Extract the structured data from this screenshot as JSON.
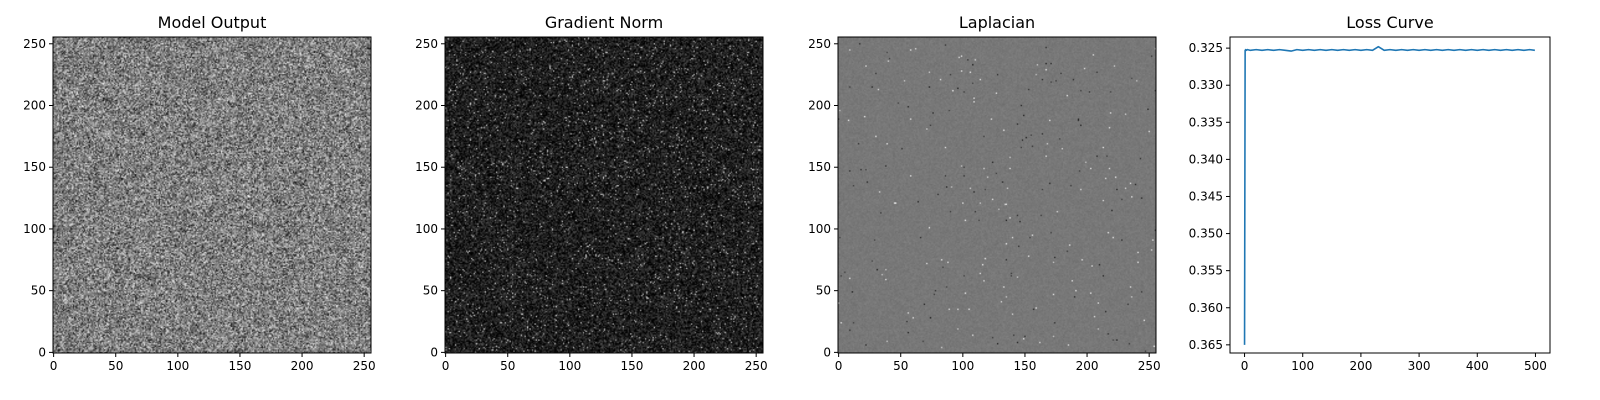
{
  "figure": {
    "background": "#ffffff",
    "text_color": "#000000"
  },
  "chart_data": [
    {
      "type": "heatmap",
      "title": "Model Output",
      "colormap": "gray",
      "grid": false,
      "image_shape": [
        256,
        256
      ],
      "xlim": [
        -0.5,
        255.5
      ],
      "ylim": [
        255.5,
        -0.5
      ],
      "x_ticks": [
        0,
        50,
        100,
        150,
        200,
        250
      ],
      "y_ticks": [
        0,
        50,
        100,
        150,
        200,
        250
      ],
      "noise": {
        "mean": 0.5,
        "spread": 0.22,
        "speck_rate": 0.0
      }
    },
    {
      "type": "heatmap",
      "title": "Gradient Norm",
      "colormap": "gray",
      "grid": false,
      "image_shape": [
        256,
        256
      ],
      "xlim": [
        -0.5,
        255.5
      ],
      "ylim": [
        255.5,
        -0.5
      ],
      "x_ticks": [
        0,
        50,
        100,
        150,
        200,
        250
      ],
      "y_ticks": [
        0,
        50,
        100,
        150,
        200,
        250
      ],
      "noise": {
        "mean": 0.12,
        "spread": 0.12,
        "speck_rate": 0.06
      }
    },
    {
      "type": "heatmap",
      "title": "Laplacian",
      "colormap": "gray",
      "grid": false,
      "image_shape": [
        256,
        256
      ],
      "xlim": [
        -0.5,
        255.5
      ],
      "ylim": [
        255.5,
        -0.5
      ],
      "x_ticks": [
        0,
        50,
        100,
        150,
        200,
        250
      ],
      "y_ticks": [
        0,
        50,
        100,
        150,
        200,
        250
      ],
      "noise": {
        "mean": 0.47,
        "spread": 0.02,
        "speck_rate": 0.004
      }
    },
    {
      "type": "line",
      "title": "Loss Curve",
      "grid": false,
      "xlim": [
        -25,
        525
      ],
      "ylim": [
        0.3235,
        0.3661
      ],
      "x_ticks": [
        0,
        100,
        200,
        300,
        400,
        500
      ],
      "y_ticks": [
        0.325,
        0.33,
        0.335,
        0.34,
        0.345,
        0.35,
        0.355,
        0.36,
        0.365
      ],
      "series": [
        {
          "color": "#1f77b4",
          "x": [
            0,
            1,
            2,
            3,
            5,
            10,
            20,
            30,
            40,
            50,
            60,
            70,
            80,
            90,
            100,
            110,
            120,
            130,
            140,
            150,
            160,
            170,
            180,
            190,
            200,
            210,
            220,
            230,
            240,
            250,
            260,
            270,
            280,
            290,
            300,
            310,
            320,
            330,
            340,
            350,
            360,
            370,
            380,
            390,
            400,
            410,
            420,
            430,
            440,
            450,
            460,
            470,
            480,
            490,
            499
          ],
          "y": [
            0.365,
            0.3253,
            0.3252,
            0.3253,
            0.3252,
            0.3253,
            0.3252,
            0.3253,
            0.3252,
            0.3253,
            0.3252,
            0.3253,
            0.3254,
            0.3252,
            0.3253,
            0.3252,
            0.3253,
            0.3252,
            0.3253,
            0.3252,
            0.3253,
            0.3252,
            0.3253,
            0.3252,
            0.3253,
            0.3252,
            0.3253,
            0.3248,
            0.3253,
            0.3252,
            0.3253,
            0.3252,
            0.3253,
            0.3252,
            0.3253,
            0.3252,
            0.3253,
            0.3252,
            0.3253,
            0.3252,
            0.3253,
            0.3252,
            0.3253,
            0.3252,
            0.3253,
            0.3252,
            0.3253,
            0.3252,
            0.3253,
            0.3252,
            0.3253,
            0.3252,
            0.3253,
            0.3252,
            0.3253
          ]
        }
      ]
    }
  ]
}
